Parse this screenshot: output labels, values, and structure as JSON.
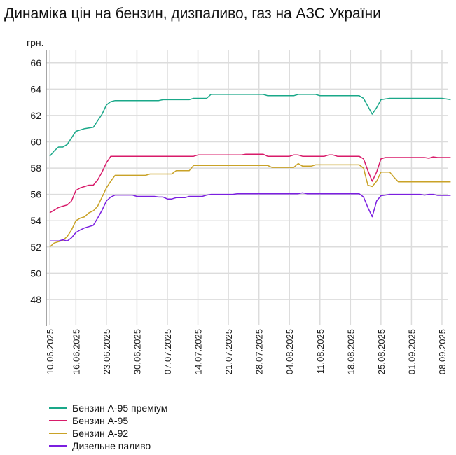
{
  "chart_data": {
    "type": "line",
    "title": "Динаміка цін на бензин, дизпаливо, газ на АЗС України",
    "ylabel": "грн.",
    "xlabel": "",
    "ylim": [
      46,
      67
    ],
    "xlim": [
      "2025-06-10",
      "2025-09-10"
    ],
    "grid": true,
    "legend_position": "bottom-left",
    "yticks": [
      48,
      50,
      52,
      54,
      56,
      58,
      60,
      62,
      64,
      66
    ],
    "xticks": [
      {
        "date": "2025-06-10",
        "label": "10.06.2025"
      },
      {
        "date": "2025-06-16",
        "label": "16.06.2025"
      },
      {
        "date": "2025-06-23",
        "label": "23.06.2025"
      },
      {
        "date": "2025-06-30",
        "label": "30.06.2025"
      },
      {
        "date": "2025-07-07",
        "label": "07.07.2025"
      },
      {
        "date": "2025-07-14",
        "label": "14.07.2025"
      },
      {
        "date": "2025-07-21",
        "label": "21.07.2025"
      },
      {
        "date": "2025-07-28",
        "label": "28.07.2025"
      },
      {
        "date": "2025-08-04",
        "label": "04.08.2025"
      },
      {
        "date": "2025-08-11",
        "label": "11.08.2025"
      },
      {
        "date": "2025-08-18",
        "label": "18.08.2025"
      },
      {
        "date": "2025-08-25",
        "label": "25.08.2025"
      },
      {
        "date": "2025-09-01",
        "label": "01.09.2025"
      },
      {
        "date": "2025-09-08",
        "label": "08.09.2025"
      }
    ],
    "series": [
      {
        "name": "Бензин А-95 преміум",
        "color": "#1aa889",
        "points": [
          [
            "2025-06-10",
            58.9
          ],
          [
            "2025-06-11",
            59.3
          ],
          [
            "2025-06-12",
            59.6
          ],
          [
            "2025-06-13",
            59.6
          ],
          [
            "2025-06-14",
            59.8
          ],
          [
            "2025-06-15",
            60.3
          ],
          [
            "2025-06-16",
            60.8
          ],
          [
            "2025-06-17",
            60.9
          ],
          [
            "2025-06-18",
            61.0
          ],
          [
            "2025-06-19",
            61.05
          ],
          [
            "2025-06-20",
            61.1
          ],
          [
            "2025-06-21",
            61.6
          ],
          [
            "2025-06-22",
            62.1
          ],
          [
            "2025-06-23",
            62.8
          ],
          [
            "2025-06-24",
            63.05
          ],
          [
            "2025-06-25",
            63.13
          ],
          [
            "2025-07-05",
            63.13
          ],
          [
            "2025-07-06",
            63.2
          ],
          [
            "2025-07-12",
            63.2
          ],
          [
            "2025-07-13",
            63.3
          ],
          [
            "2025-07-16",
            63.3
          ],
          [
            "2025-07-17",
            63.6
          ],
          [
            "2025-07-29",
            63.6
          ],
          [
            "2025-07-30",
            63.5
          ],
          [
            "2025-08-05",
            63.5
          ],
          [
            "2025-08-06",
            63.6
          ],
          [
            "2025-08-10",
            63.6
          ],
          [
            "2025-08-11",
            63.5
          ],
          [
            "2025-08-20",
            63.5
          ],
          [
            "2025-08-21",
            63.3
          ],
          [
            "2025-08-22",
            62.7
          ],
          [
            "2025-08-23",
            62.1
          ],
          [
            "2025-08-24",
            62.6
          ],
          [
            "2025-08-25",
            63.2
          ],
          [
            "2025-08-26",
            63.25
          ],
          [
            "2025-08-27",
            63.3
          ],
          [
            "2025-09-08",
            63.3
          ],
          [
            "2025-09-09",
            63.25
          ],
          [
            "2025-09-10",
            63.2
          ]
        ]
      },
      {
        "name": "Бензин А-95",
        "color": "#d81b6a",
        "points": [
          [
            "2025-06-10",
            54.6
          ],
          [
            "2025-06-11",
            54.8
          ],
          [
            "2025-06-12",
            55.0
          ],
          [
            "2025-06-13",
            55.1
          ],
          [
            "2025-06-14",
            55.2
          ],
          [
            "2025-06-15",
            55.5
          ],
          [
            "2025-06-16",
            56.3
          ],
          [
            "2025-06-17",
            56.5
          ],
          [
            "2025-06-18",
            56.6
          ],
          [
            "2025-06-19",
            56.7
          ],
          [
            "2025-06-20",
            56.7
          ],
          [
            "2025-06-21",
            57.1
          ],
          [
            "2025-06-22",
            57.7
          ],
          [
            "2025-06-23",
            58.4
          ],
          [
            "2025-06-24",
            58.9
          ],
          [
            "2025-07-13",
            58.9
          ],
          [
            "2025-07-14",
            59.0
          ],
          [
            "2025-07-24",
            59.0
          ],
          [
            "2025-07-25",
            59.05
          ],
          [
            "2025-07-29",
            59.05
          ],
          [
            "2025-07-30",
            58.9
          ],
          [
            "2025-08-04",
            58.9
          ],
          [
            "2025-08-05",
            59.0
          ],
          [
            "2025-08-06",
            59.0
          ],
          [
            "2025-08-07",
            58.9
          ],
          [
            "2025-08-12",
            58.9
          ],
          [
            "2025-08-13",
            59.0
          ],
          [
            "2025-08-14",
            59.0
          ],
          [
            "2025-08-15",
            58.9
          ],
          [
            "2025-08-20",
            58.9
          ],
          [
            "2025-08-21",
            58.7
          ],
          [
            "2025-08-22",
            57.8
          ],
          [
            "2025-08-23",
            57.0
          ],
          [
            "2025-08-24",
            57.7
          ],
          [
            "2025-08-25",
            58.7
          ],
          [
            "2025-08-26",
            58.8
          ],
          [
            "2025-09-04",
            58.8
          ],
          [
            "2025-09-05",
            58.75
          ],
          [
            "2025-09-06",
            58.85
          ],
          [
            "2025-09-07",
            58.8
          ],
          [
            "2025-09-10",
            58.8
          ]
        ]
      },
      {
        "name": "Бензин А-92",
        "color": "#c9a227",
        "points": [
          [
            "2025-06-10",
            52.0
          ],
          [
            "2025-06-11",
            52.3
          ],
          [
            "2025-06-12",
            52.4
          ],
          [
            "2025-06-13",
            52.5
          ],
          [
            "2025-06-14",
            52.8
          ],
          [
            "2025-06-15",
            53.3
          ],
          [
            "2025-06-16",
            54.0
          ],
          [
            "2025-06-17",
            54.2
          ],
          [
            "2025-06-18",
            54.3
          ],
          [
            "2025-06-19",
            54.6
          ],
          [
            "2025-06-20",
            54.75
          ],
          [
            "2025-06-21",
            55.1
          ],
          [
            "2025-06-22",
            55.8
          ],
          [
            "2025-06-23",
            56.5
          ],
          [
            "2025-06-24",
            57.0
          ],
          [
            "2025-06-25",
            57.45
          ],
          [
            "2025-07-02",
            57.45
          ],
          [
            "2025-07-03",
            57.55
          ],
          [
            "2025-07-08",
            57.55
          ],
          [
            "2025-07-09",
            57.8
          ],
          [
            "2025-07-12",
            57.8
          ],
          [
            "2025-07-13",
            58.2
          ],
          [
            "2025-07-30",
            58.2
          ],
          [
            "2025-07-31",
            58.05
          ],
          [
            "2025-08-05",
            58.05
          ],
          [
            "2025-08-06",
            58.35
          ],
          [
            "2025-08-07",
            58.15
          ],
          [
            "2025-08-09",
            58.15
          ],
          [
            "2025-08-10",
            58.25
          ],
          [
            "2025-08-20",
            58.25
          ],
          [
            "2025-08-21",
            58.0
          ],
          [
            "2025-08-22",
            56.7
          ],
          [
            "2025-08-23",
            56.6
          ],
          [
            "2025-08-24",
            57.0
          ],
          [
            "2025-08-25",
            57.7
          ],
          [
            "2025-08-27",
            57.7
          ],
          [
            "2025-08-28",
            57.3
          ],
          [
            "2025-08-29",
            56.95
          ],
          [
            "2025-09-10",
            56.95
          ]
        ]
      },
      {
        "name": "Дизельне паливо",
        "color": "#7b1fe0",
        "points": [
          [
            "2025-06-10",
            52.45
          ],
          [
            "2025-06-12",
            52.45
          ],
          [
            "2025-06-13",
            52.55
          ],
          [
            "2025-06-14",
            52.45
          ],
          [
            "2025-06-15",
            52.7
          ],
          [
            "2025-06-16",
            53.1
          ],
          [
            "2025-06-17",
            53.3
          ],
          [
            "2025-06-18",
            53.45
          ],
          [
            "2025-06-19",
            53.55
          ],
          [
            "2025-06-20",
            53.65
          ],
          [
            "2025-06-21",
            54.2
          ],
          [
            "2025-06-22",
            54.8
          ],
          [
            "2025-06-23",
            55.5
          ],
          [
            "2025-06-24",
            55.8
          ],
          [
            "2025-06-25",
            55.95
          ],
          [
            "2025-06-29",
            55.95
          ],
          [
            "2025-06-30",
            55.85
          ],
          [
            "2025-07-04",
            55.85
          ],
          [
            "2025-07-05",
            55.8
          ],
          [
            "2025-07-06",
            55.8
          ],
          [
            "2025-07-07",
            55.65
          ],
          [
            "2025-07-08",
            55.65
          ],
          [
            "2025-07-09",
            55.75
          ],
          [
            "2025-07-11",
            55.75
          ],
          [
            "2025-07-12",
            55.85
          ],
          [
            "2025-07-15",
            55.85
          ],
          [
            "2025-07-16",
            55.95
          ],
          [
            "2025-07-17",
            56.0
          ],
          [
            "2025-07-22",
            56.0
          ],
          [
            "2025-07-23",
            56.05
          ],
          [
            "2025-08-06",
            56.05
          ],
          [
            "2025-08-07",
            56.12
          ],
          [
            "2025-08-08",
            56.05
          ],
          [
            "2025-08-20",
            56.05
          ],
          [
            "2025-08-21",
            55.8
          ],
          [
            "2025-08-22",
            55.0
          ],
          [
            "2025-08-23",
            54.3
          ],
          [
            "2025-08-24",
            55.5
          ],
          [
            "2025-08-25",
            55.9
          ],
          [
            "2025-08-26",
            55.95
          ],
          [
            "2025-08-27",
            56.0
          ],
          [
            "2025-09-03",
            56.0
          ],
          [
            "2025-09-04",
            55.95
          ],
          [
            "2025-09-05",
            56.0
          ],
          [
            "2025-09-06",
            56.0
          ],
          [
            "2025-09-07",
            55.93
          ],
          [
            "2025-09-10",
            55.93
          ]
        ]
      }
    ]
  }
}
